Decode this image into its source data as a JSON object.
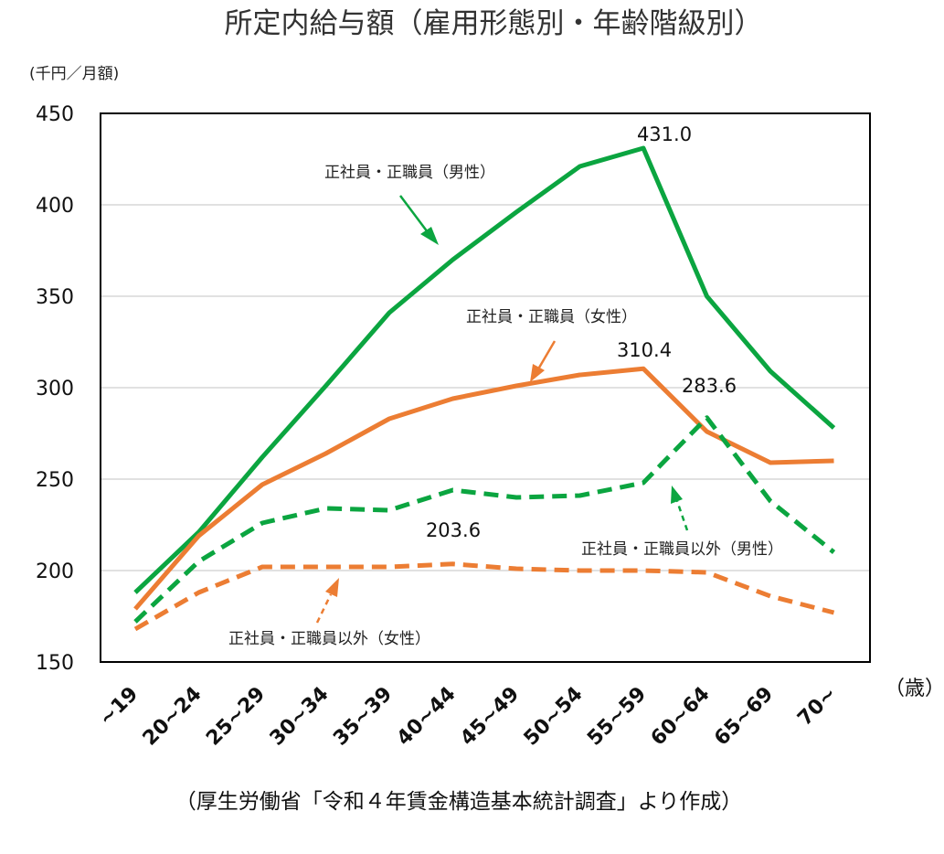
{
  "chart_data": {
    "type": "line",
    "title": "所定内給与額（雇用形態別・年齢階級別）",
    "unit_label": "(千円／月額)",
    "xlabel": "（歳）",
    "categories": [
      "~19",
      "20~24",
      "25~29",
      "30~34",
      "35~39",
      "40~44",
      "45~49",
      "50~54",
      "55~59",
      "60~64",
      "65~69",
      "70~"
    ],
    "ylim": [
      150,
      450
    ],
    "yticks": [
      150,
      200,
      250,
      300,
      350,
      400,
      450
    ],
    "grid": true,
    "series": [
      {
        "name": "正社員・正職員（男性）",
        "color": "#0ba540",
        "dash": false,
        "values": [
          188,
          221,
          262,
          301,
          341,
          370,
          396,
          421,
          431.0,
          350,
          309,
          278
        ]
      },
      {
        "name": "正社員・正職員（女性）",
        "color": "#ec7d33",
        "dash": false,
        "values": [
          179,
          219,
          247,
          264,
          283,
          294,
          301,
          307,
          310.4,
          276,
          259,
          260
        ]
      },
      {
        "name": "正社員・正職員以外（男性）",
        "color": "#0ba540",
        "dash": true,
        "values": [
          172,
          205,
          226,
          234,
          233,
          244,
          240,
          241,
          248,
          283.6,
          238,
          210
        ]
      },
      {
        "name": "正社員・正職員以外（女性）",
        "color": "#ec7d33",
        "dash": true,
        "values": [
          168,
          188,
          202,
          202,
          202,
          203.6,
          201,
          200,
          200,
          199,
          186,
          177
        ]
      }
    ],
    "data_labels": [
      "431.0",
      "310.4",
      "283.6",
      "203.6"
    ],
    "source_note": "（厚生労働省「令和４年賃金構造基本統計調査」より作成）"
  }
}
